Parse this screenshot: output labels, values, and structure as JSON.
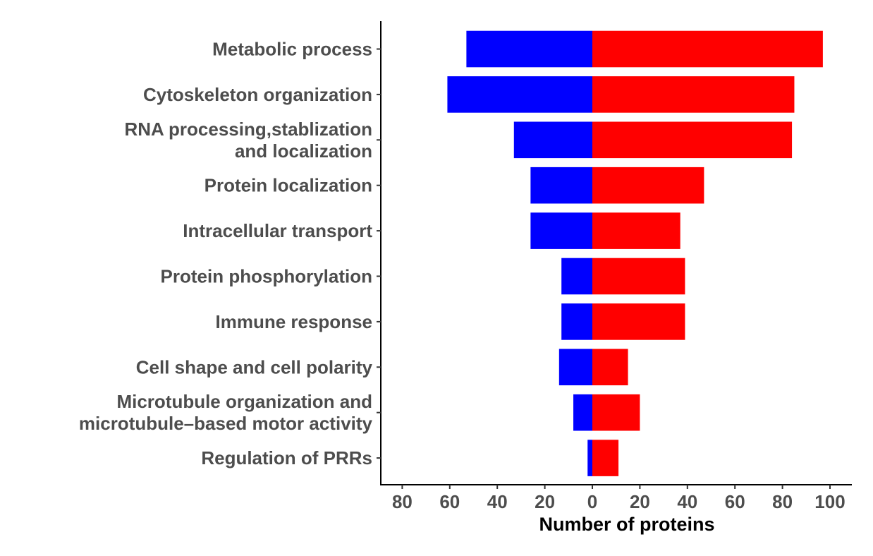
{
  "chart_data": {
    "type": "bar",
    "orientation": "horizontal-diverging",
    "title": "",
    "xlabel": "Number of proteins",
    "ylabel": "",
    "categories": [
      [
        "Metabolic process"
      ],
      [
        "Cytoskeleton organization"
      ],
      [
        "RNA processing,stablization",
        "and localization"
      ],
      [
        "Protein localization"
      ],
      [
        "Intracellular transport"
      ],
      [
        "Protein phosphorylation"
      ],
      [
        "Immune response"
      ],
      [
        "Cell shape and cell polarity"
      ],
      [
        "Microtubule organization and",
        "microtubule–based motor activity"
      ],
      [
        "Regulation of PRRs"
      ]
    ],
    "series": [
      {
        "color": "#0000ff",
        "direction": "left",
        "values": [
          53,
          61,
          33,
          26,
          26,
          13,
          13,
          14,
          8,
          2
        ]
      },
      {
        "color": "#ff0000",
        "direction": "right",
        "values": [
          97,
          85,
          84,
          47,
          37,
          39,
          39,
          15,
          20,
          11
        ]
      }
    ],
    "xlim": [
      -90,
      102
    ],
    "xticks": [
      -80,
      -60,
      -40,
      -20,
      0,
      20,
      40,
      60,
      80,
      100
    ],
    "xtick_labels": [
      "80",
      "60",
      "40",
      "20",
      "0",
      "20",
      "40",
      "60",
      "80",
      "100"
    ],
    "grid": false,
    "legend": "none"
  }
}
